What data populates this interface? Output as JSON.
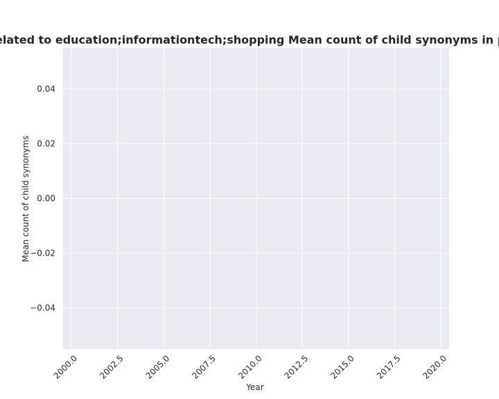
{
  "chart_data": {
    "type": "line",
    "title": "Websites are related to education;informationtech;shopping Mean count of child synonyms in privacy policies",
    "xlabel": "Year",
    "ylabel": "Mean count of child synonyms",
    "xlim": [
      1999.55,
      2020.45
    ],
    "ylim": [
      -0.055,
      0.055
    ],
    "xticks": [
      2000.0,
      2002.5,
      2005.0,
      2007.5,
      2010.0,
      2012.5,
      2015.0,
      2017.5,
      2020.0
    ],
    "xtick_labels": [
      "2000.0",
      "2002.5",
      "2005.0",
      "2007.5",
      "2010.0",
      "2012.5",
      "2015.0",
      "2017.5",
      "2020.0"
    ],
    "yticks": [
      -0.04,
      -0.02,
      0.0,
      0.02,
      0.04
    ],
    "ytick_labels": [
      "−0.04",
      "−0.02",
      "0.00",
      "0.02",
      "0.04"
    ],
    "series": [],
    "grid": true,
    "background": "#eaeaf2",
    "grid_color": "#ffffff",
    "text_color": "#262626"
  }
}
